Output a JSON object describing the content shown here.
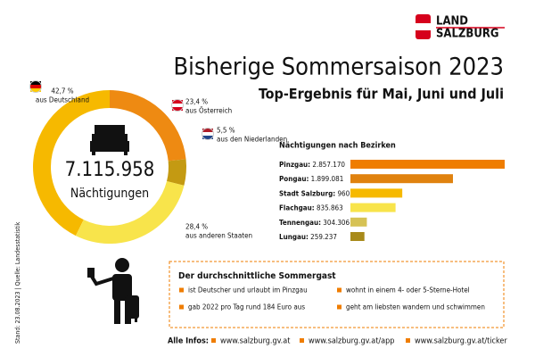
{
  "header": {
    "logo": [
      "LAND",
      "SALZBURG"
    ],
    "title": "Bisherige Sommersaison 2023",
    "subtitle": "Top-Ergebnis für Mai, Juni und Juli",
    "source": "Stand: 23.08.2023 | Quelle: Landesstatistik"
  },
  "chart_data": [
    {
      "type": "pie",
      "center_text": [
        "7.115.958",
        "Nächtigungen"
      ],
      "categories": [
        "aus Deutschland",
        "aus Österreich",
        "aus den Niederlanden",
        "aus anderen Staaten"
      ],
      "values": [
        42.7,
        23.4,
        5.5,
        28.4
      ],
      "value_labels": [
        "42,7 %",
        "23,4 %",
        "5,5 %",
        "28,4 %"
      ],
      "colors": [
        "#f6b900",
        "#ee8a12",
        "#c49a12",
        "#f8e44b"
      ]
    },
    {
      "type": "bar",
      "title": "Nächtigungen nach Bezirken",
      "categories": [
        "Pinzgau:",
        "Pongau:",
        "Stadt Salzburg:",
        "Flachgau:",
        "Tennengau:",
        "Lungau:"
      ],
      "values": [
        2857170,
        1899081,
        960301,
        835863,
        304306,
        259237
      ],
      "value_labels": [
        "2.857.170",
        "1.899.081",
        "960.301",
        "835.863",
        "304.306",
        "259.237"
      ],
      "colors": [
        "#ef7d00",
        "#e0820f",
        "#f6b900",
        "#f8e44b",
        "#d6c255",
        "#a88a1a"
      ],
      "xlim": [
        0,
        2857170
      ]
    }
  ],
  "guest": {
    "title": "Der durchschnittliche Sommergast",
    "items": [
      "ist Deutscher und urlaubt im Pinzgau",
      "wohnt in einem 4- oder 5-Sterne-Hotel",
      "gab 2022 pro Tag rund 184 Euro aus",
      "geht am liebsten wandern und schwimmen"
    ]
  },
  "footer": {
    "label": "Alle Infos:",
    "links": [
      "www.salzburg.gv.at",
      "www.salzburg.gv.at/app",
      "www.salzburg.gv.at/ticker"
    ]
  }
}
